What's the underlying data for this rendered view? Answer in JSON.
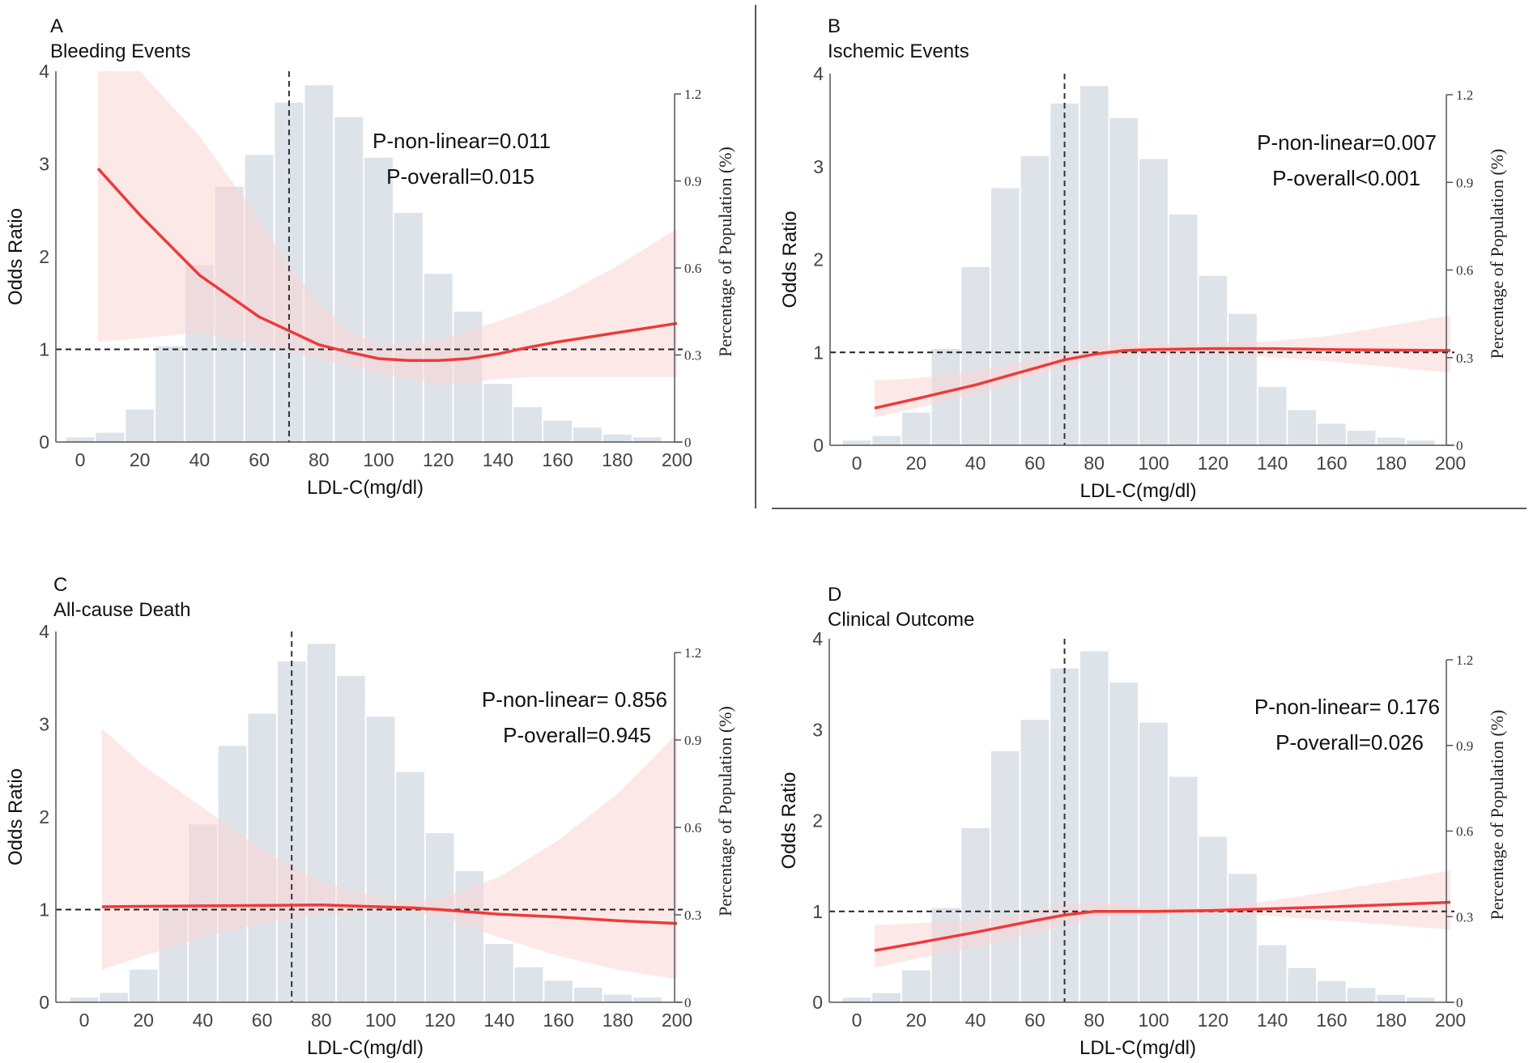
{
  "chart_data": [
    {
      "type": "line",
      "panel": "A",
      "title": "Bleeding Events",
      "xlabel": "LDL-C(mg/dl)",
      "ylabel": "Odds Ratio",
      "y2label": "Percentage of Population (%)",
      "annotations": [
        "P-non-linear=0.011",
        "P-overall=0.015"
      ],
      "xlim": [
        -5,
        200
      ],
      "ylim": [
        0,
        4
      ],
      "y2lim": [
        0,
        1.2
      ],
      "xticks": [
        0,
        20,
        40,
        60,
        80,
        100,
        120,
        140,
        160,
        180,
        200
      ],
      "yticks": [
        0,
        1,
        2,
        3,
        4
      ],
      "y2ticks": [
        0,
        0.3,
        0.6,
        0.9,
        1.2
      ],
      "reference_lines": {
        "x": 70,
        "y": 1
      },
      "histogram": {
        "bin_centers": [
          0,
          10,
          20,
          30,
          40,
          50,
          60,
          70,
          80,
          90,
          100,
          110,
          120,
          130,
          140,
          150,
          160,
          170,
          180,
          190
        ],
        "percent": [
          0.016,
          0.032,
          0.112,
          0.33,
          0.61,
          0.88,
          0.99,
          1.17,
          1.23,
          1.12,
          0.98,
          0.79,
          0.58,
          0.45,
          0.2,
          0.12,
          0.074,
          0.05,
          0.026,
          0.016
        ]
      },
      "curve": {
        "x": [
          6,
          20,
          40,
          60,
          70,
          80,
          90,
          100,
          110,
          120,
          130,
          140,
          150,
          160,
          180,
          200
        ],
        "or": [
          2.95,
          2.45,
          1.8,
          1.35,
          1.2,
          1.05,
          0.97,
          0.9,
          0.88,
          0.88,
          0.9,
          0.95,
          1.02,
          1.08,
          1.18,
          1.28
        ],
        "lower": [
          1.08,
          1.12,
          1.18,
          1.05,
          0.98,
          0.9,
          0.82,
          0.75,
          0.68,
          0.62,
          0.64,
          0.68,
          0.7,
          0.7,
          0.7,
          0.7
        ],
        "upper": [
          4,
          4,
          3.3,
          2.4,
          1.9,
          1.5,
          1.2,
          1.05,
          1.05,
          1.1,
          1.2,
          1.3,
          1.42,
          1.55,
          1.9,
          2.3
        ]
      }
    },
    {
      "type": "line",
      "panel": "B",
      "title": "Ischemic Events",
      "xlabel": "LDL-C(mg/dl)",
      "ylabel": "Odds Ratio",
      "y2label": "Percentage of Population (%)",
      "annotations": [
        "P-non-linear=0.007",
        "P-overall<0.001"
      ],
      "xlim": [
        -5,
        200
      ],
      "ylim": [
        0,
        4
      ],
      "y2lim": [
        0,
        1.2
      ],
      "xticks": [
        0,
        20,
        40,
        60,
        80,
        100,
        120,
        140,
        160,
        180,
        200
      ],
      "yticks": [
        0,
        1,
        2,
        3,
        4
      ],
      "y2ticks": [
        0,
        0.3,
        0.6,
        0.9,
        1.2
      ],
      "reference_lines": {
        "x": 70,
        "y": 1
      },
      "histogram": {
        "bin_centers": [
          0,
          10,
          20,
          30,
          40,
          50,
          60,
          70,
          80,
          90,
          100,
          110,
          120,
          130,
          140,
          150,
          160,
          170,
          180,
          190
        ],
        "percent": [
          0.016,
          0.032,
          0.112,
          0.33,
          0.61,
          0.88,
          0.99,
          1.17,
          1.23,
          1.12,
          0.98,
          0.79,
          0.58,
          0.45,
          0.2,
          0.12,
          0.074,
          0.05,
          0.026,
          0.016
        ]
      },
      "curve": {
        "x": [
          6,
          20,
          40,
          60,
          70,
          80,
          90,
          100,
          120,
          140,
          160,
          200
        ],
        "or": [
          0.4,
          0.5,
          0.65,
          0.83,
          0.92,
          0.98,
          1.02,
          1.03,
          1.04,
          1.04,
          1.03,
          1.02
        ],
        "lower": [
          0.3,
          0.4,
          0.55,
          0.75,
          0.85,
          0.92,
          0.95,
          0.97,
          0.98,
          0.95,
          0.9,
          0.78
        ],
        "upper": [
          0.7,
          0.72,
          0.8,
          0.92,
          1.0,
          1.06,
          1.1,
          1.1,
          1.1,
          1.12,
          1.18,
          1.4
        ]
      }
    },
    {
      "type": "line",
      "panel": "C",
      "title": "All-cause Death",
      "xlabel": "LDL-C(mg/dl)",
      "ylabel": "Odds Ratio",
      "y2label": "Percentage of Population (%)",
      "annotations": [
        "P-non-linear= 0.856",
        "P-overall=0.945"
      ],
      "xlim": [
        -5,
        200
      ],
      "ylim": [
        0,
        4
      ],
      "y2lim": [
        0,
        1.2
      ],
      "xticks": [
        0,
        20,
        40,
        60,
        80,
        100,
        120,
        140,
        160,
        180,
        200
      ],
      "yticks": [
        0,
        1,
        2,
        3,
        4
      ],
      "y2ticks": [
        0,
        0.3,
        0.6,
        0.9,
        1.2
      ],
      "reference_lines": {
        "x": 70,
        "y": 1
      },
      "histogram": {
        "bin_centers": [
          0,
          10,
          20,
          30,
          40,
          50,
          60,
          70,
          80,
          90,
          100,
          110,
          120,
          130,
          140,
          150,
          160,
          170,
          180,
          190
        ],
        "percent": [
          0.016,
          0.032,
          0.112,
          0.33,
          0.61,
          0.88,
          0.99,
          1.17,
          1.23,
          1.12,
          0.98,
          0.79,
          0.58,
          0.45,
          0.2,
          0.12,
          0.074,
          0.05,
          0.026,
          0.016
        ]
      },
      "curve": {
        "x": [
          6,
          20,
          40,
          60,
          80,
          100,
          110,
          120,
          140,
          160,
          180,
          200
        ],
        "or": [
          1.03,
          1.035,
          1.04,
          1.045,
          1.05,
          1.03,
          1.02,
          1.0,
          0.95,
          0.92,
          0.88,
          0.85
        ],
        "lower": [
          0.35,
          0.5,
          0.7,
          0.85,
          0.95,
          0.97,
          0.97,
          0.93,
          0.7,
          0.5,
          0.35,
          0.25
        ],
        "upper": [
          2.95,
          2.55,
          2.1,
          1.65,
          1.3,
          1.12,
          1.08,
          1.12,
          1.35,
          1.75,
          2.25,
          2.9
        ]
      }
    },
    {
      "type": "line",
      "panel": "D",
      "title": "Clinical Outcome",
      "xlabel": "LDL-C(mg/dl)",
      "ylabel": "Odds Ratio",
      "y2label": "Percentage of Population (%)",
      "annotations": [
        "P-non-linear= 0.176",
        "P-overall=0.026"
      ],
      "xlim": [
        -5,
        200
      ],
      "ylim": [
        0,
        4
      ],
      "y2lim": [
        0,
        1.2
      ],
      "xticks": [
        0,
        20,
        40,
        60,
        80,
        100,
        120,
        140,
        160,
        180,
        200
      ],
      "yticks": [
        0,
        1,
        2,
        3,
        4
      ],
      "y2ticks": [
        0,
        0.3,
        0.6,
        0.9,
        1.2
      ],
      "reference_lines": {
        "x": 70,
        "y": 1
      },
      "histogram": {
        "bin_centers": [
          0,
          10,
          20,
          30,
          40,
          50,
          60,
          70,
          80,
          90,
          100,
          110,
          120,
          130,
          140,
          150,
          160,
          170,
          180,
          190
        ],
        "percent": [
          0.016,
          0.032,
          0.112,
          0.33,
          0.61,
          0.88,
          0.99,
          1.17,
          1.23,
          1.12,
          0.98,
          0.79,
          0.58,
          0.45,
          0.2,
          0.12,
          0.074,
          0.05,
          0.026,
          0.016
        ]
      },
      "curve": {
        "x": [
          6,
          20,
          40,
          60,
          70,
          80,
          100,
          120,
          140,
          160,
          200
        ],
        "or": [
          0.57,
          0.65,
          0.77,
          0.9,
          0.96,
          1.0,
          1.0,
          1.01,
          1.03,
          1.05,
          1.1
        ],
        "lower": [
          0.38,
          0.48,
          0.6,
          0.76,
          0.85,
          0.92,
          0.98,
          0.98,
          0.95,
          0.9,
          0.8
        ],
        "upper": [
          0.85,
          0.87,
          0.9,
          1.0,
          1.08,
          1.1,
          1.05,
          1.04,
          1.12,
          1.22,
          1.45
        ]
      }
    }
  ],
  "colors": {
    "bars": "#dde3e9",
    "curve": "#ee3a3a",
    "ci": "#fbd6d6",
    "axis": "#555555"
  }
}
